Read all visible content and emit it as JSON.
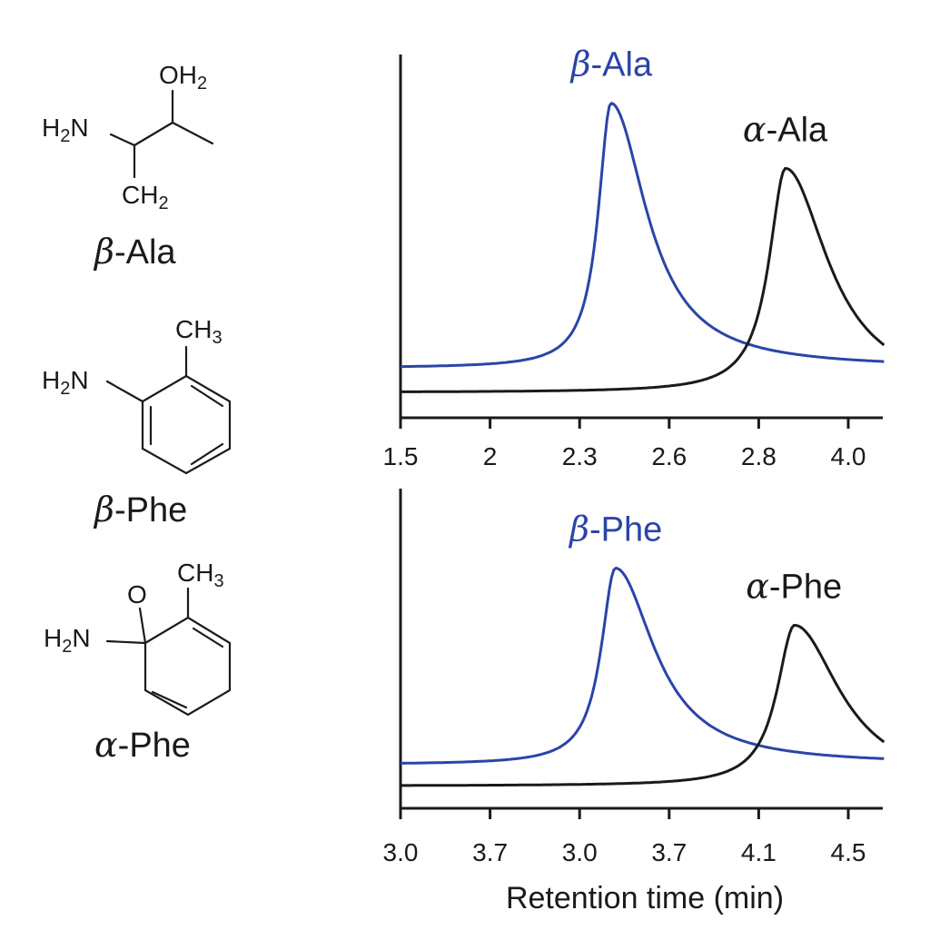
{
  "structures": [
    {
      "name": "β-Ala",
      "caption_greek": "β",
      "caption_rest": "-Ala",
      "labels": {
        "oh2": "OH",
        "oh2_sub": "2",
        "h2n": "H",
        "h2n_sub": "2",
        "h2n_tail": "N",
        "ch2": "CH",
        "ch2_sub": "2"
      }
    },
    {
      "name": "β-Phe",
      "caption_greek": "β",
      "caption_rest": "-Phe",
      "labels": {
        "ch3": "CH",
        "ch3_sub": "3",
        "h2n": "H",
        "h2n_sub": "2",
        "h2n_tail": "N"
      }
    },
    {
      "name": "α-Phe",
      "caption_greek": "α",
      "caption_rest": "-Phe",
      "labels": {
        "o": "O",
        "ch3": "CH",
        "ch3_sub": "3",
        "h2n": "H",
        "h2n_sub": "2",
        "h2n_tail": "N"
      }
    }
  ],
  "chart_data": [
    {
      "type": "line",
      "title": "",
      "xlabel": "",
      "ylabel": "",
      "x_ticks": [
        "1.5",
        "2",
        "2.3",
        "2.6",
        "2.8",
        "4.0"
      ],
      "grid": false,
      "series": [
        {
          "name_greek": "β",
          "name_rest": "-Ala",
          "color": "#2a45a8",
          "baseline": 0.12,
          "peak_tick": 2.35,
          "height": 0.65,
          "width_left": 0.23,
          "width_right": 0.55
        },
        {
          "name_greek": "α",
          "name_rest": "-Ala",
          "color": "#1a1a1a",
          "baseline": 0.06,
          "peak_tick": 4.3,
          "height": 0.55,
          "width_left": 0.3,
          "width_right": 0.65
        }
      ]
    },
    {
      "type": "line",
      "title": "",
      "xlabel": "Retention time (min)",
      "ylabel": "",
      "x_ticks": [
        "3.0",
        "3.7",
        "3.0",
        "3.7",
        "4.1",
        "4.5"
      ],
      "grid": false,
      "series": [
        {
          "name_greek": "β",
          "name_rest": "-Phe",
          "color": "#2a45a8",
          "baseline": 0.12,
          "peak_tick": 2.4,
          "height": 0.55,
          "width_left": 0.26,
          "width_right": 0.6
        },
        {
          "name_greek": "α",
          "name_rest": "-Phe",
          "color": "#1a1a1a",
          "baseline": 0.06,
          "peak_tick": 4.4,
          "height": 0.45,
          "width_left": 0.32,
          "width_right": 0.7
        }
      ]
    }
  ]
}
